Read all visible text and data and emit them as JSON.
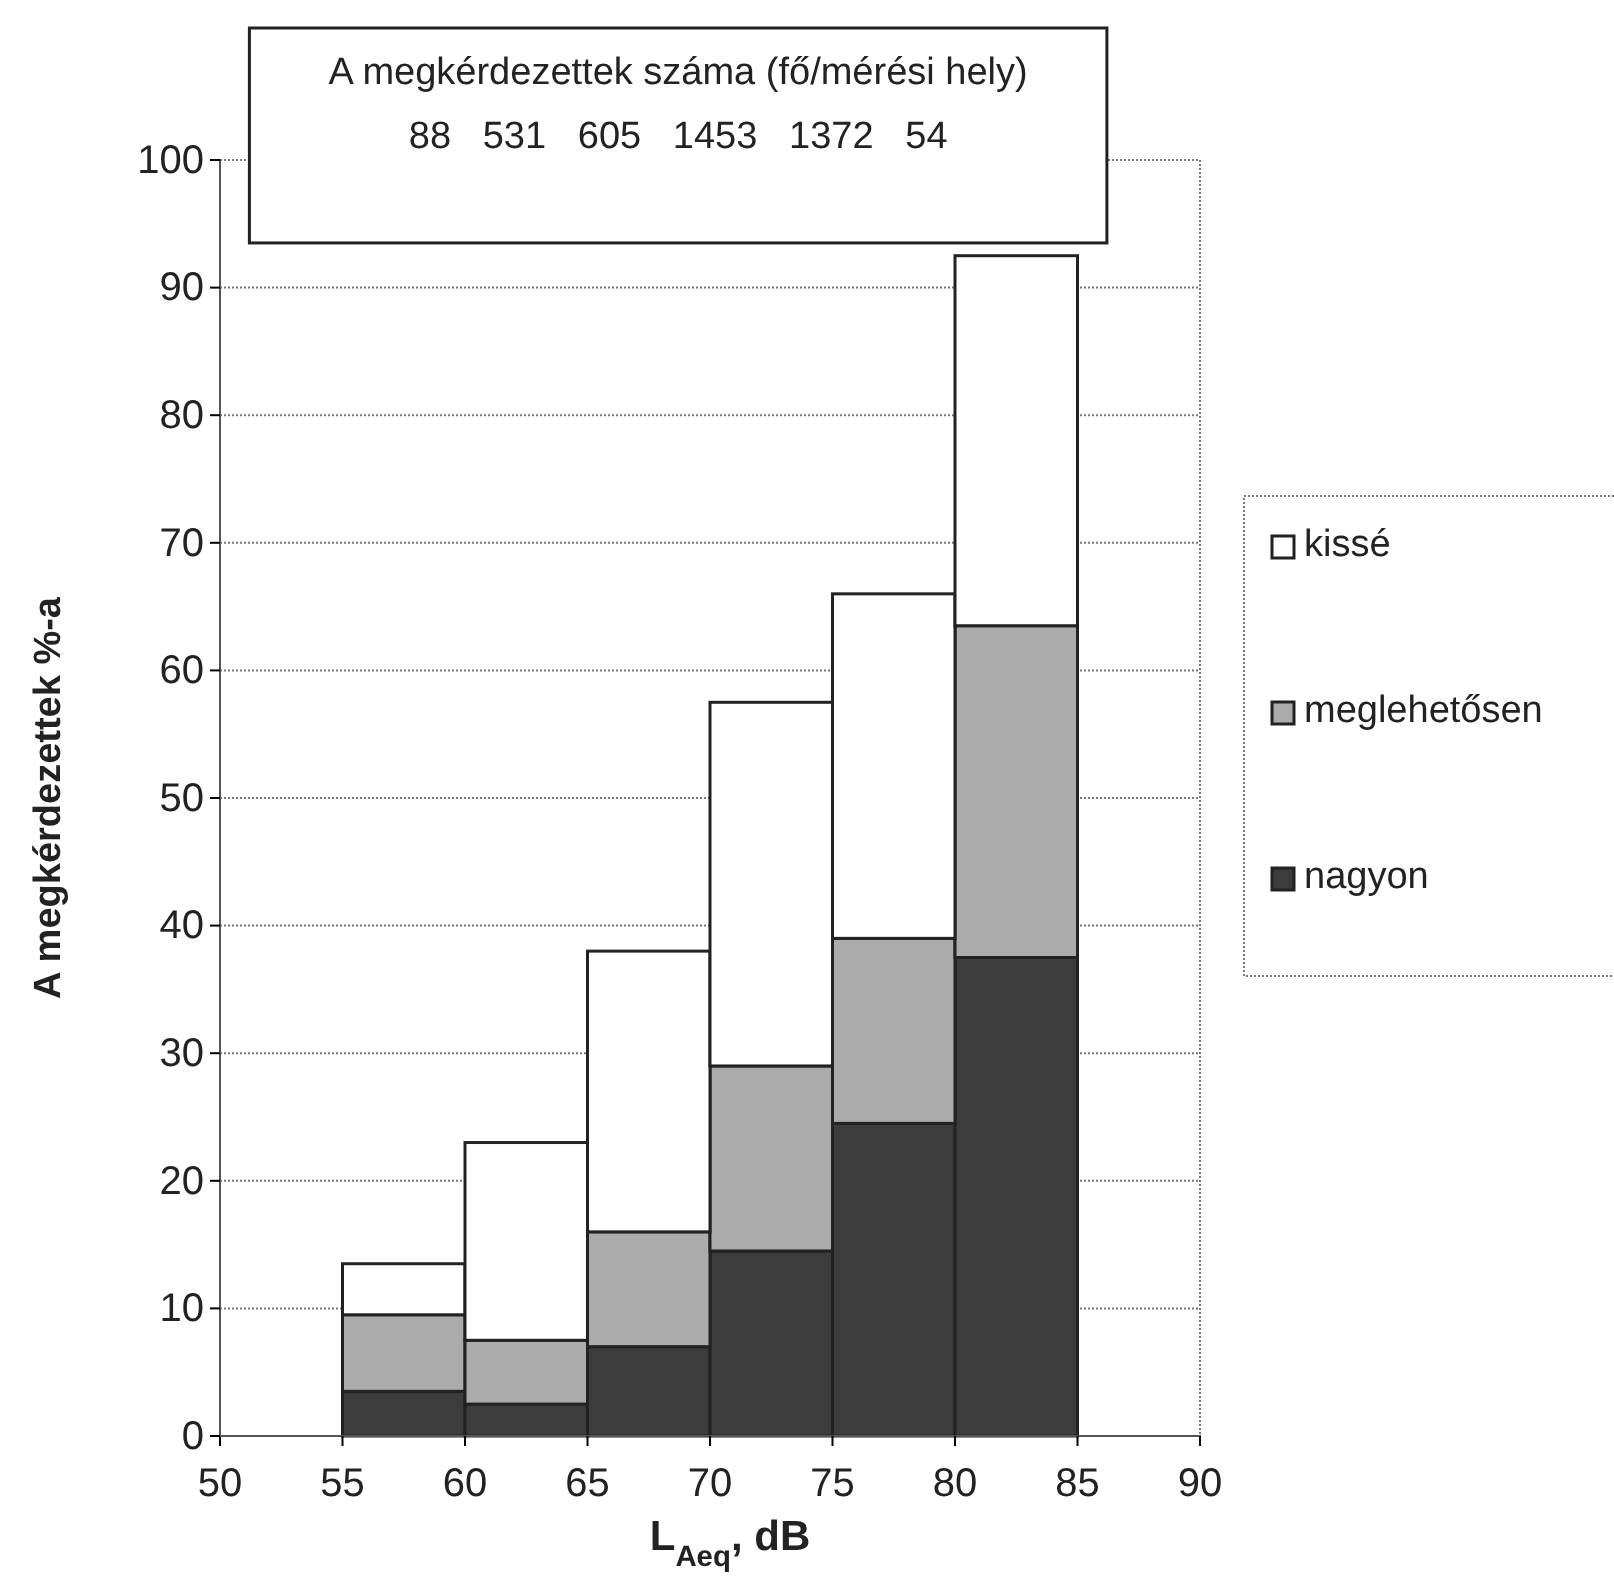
{
  "chart_data": {
    "type": "bar",
    "xlabel": "L$_{Aeq}$, dB",
    "ylabel": "A megkérdezettek %-a",
    "annotations": [
      "A megkérdezettek száma (fő/mérési hely)",
      "88   531   605   1453   1372   54"
    ],
    "x": [
      57.5,
      62.5,
      67.5,
      72.5,
      77.5,
      82.5
    ],
    "stacked": true,
    "series": [
      {
        "name": "nagyon",
        "color": "#3c3c3c",
        "values": [
          3.5,
          2.5,
          7,
          14.5,
          24.5,
          37.5
        ]
      },
      {
        "name": "meglehetősen",
        "color": "#ababab",
        "values": [
          6,
          5,
          9,
          14.5,
          14.5,
          26
        ]
      },
      {
        "name": "kissé",
        "color": "#ffffff",
        "values": [
          4,
          15.5,
          22,
          28.5,
          27,
          29
        ]
      }
    ],
    "xlim": [
      50,
      90
    ],
    "xticks": [
      50,
      55,
      60,
      65,
      70,
      75,
      80,
      85,
      90
    ],
    "ylim": [
      0,
      100
    ],
    "yticks": [
      0,
      10,
      20,
      30,
      40,
      50,
      60,
      70,
      80,
      90,
      100
    ],
    "grid": "y",
    "legend": "right"
  }
}
